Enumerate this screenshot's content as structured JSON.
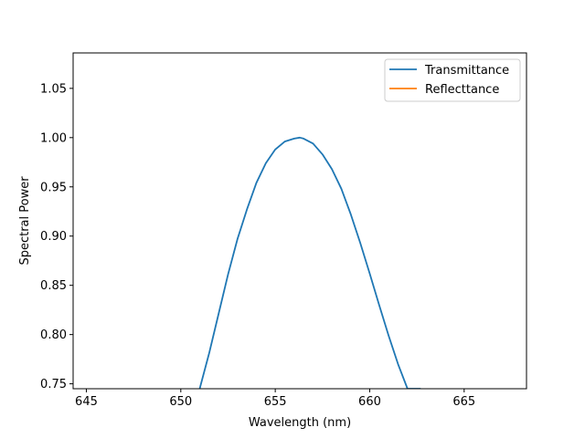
{
  "chart_data": {
    "type": "line",
    "title": "",
    "xlabel": "Wavelength  (nm)",
    "ylabel": "Spectral Power",
    "xlim": [
      644.3,
      668.3
    ],
    "ylim": [
      0.745,
      1.086
    ],
    "xticks": [
      645,
      650,
      655,
      660,
      665
    ],
    "yticks": [
      0.75,
      0.8,
      0.85,
      0.9,
      0.95,
      1.0,
      1.05
    ],
    "grid": false,
    "legend_position": "top-right",
    "series": [
      {
        "name": "Transmittance",
        "color": "#1f77b4",
        "peak_x": 656.3,
        "peak_y": 1.0,
        "x": [
          651.0,
          651.5,
          652.0,
          652.5,
          653.0,
          653.5,
          654.0,
          654.5,
          655.0,
          655.5,
          656.0,
          656.3,
          656.5,
          657.0,
          657.5,
          658.0,
          658.5,
          659.0,
          659.5,
          660.0,
          660.5,
          661.0,
          661.5,
          662.0,
          662.5,
          662.7
        ],
        "y": [
          0.745,
          0.781,
          0.821,
          0.861,
          0.897,
          0.927,
          0.954,
          0.974,
          0.988,
          0.996,
          0.999,
          1.0,
          0.999,
          0.994,
          0.983,
          0.968,
          0.948,
          0.922,
          0.893,
          0.862,
          0.83,
          0.799,
          0.77,
          0.745,
          0.745,
          0.745
        ]
      },
      {
        "name": "Reflecttance",
        "color": "#ff7f0e",
        "x": [],
        "y": []
      }
    ]
  }
}
